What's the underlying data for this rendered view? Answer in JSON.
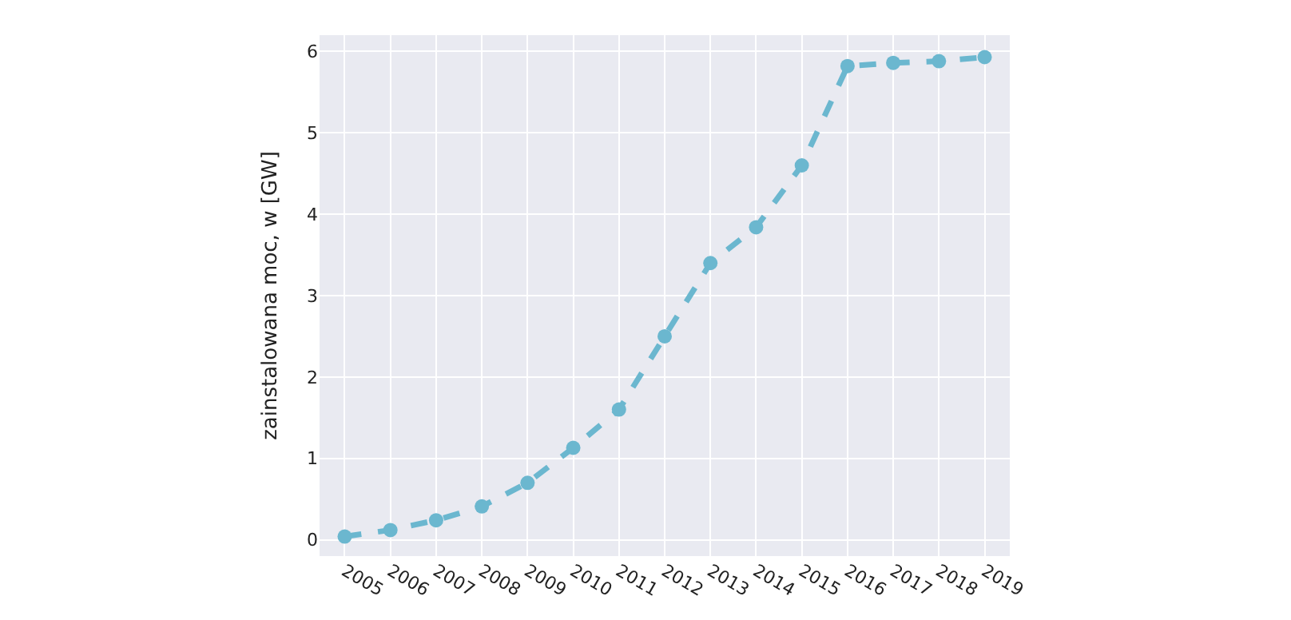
{
  "chart_data": {
    "type": "line",
    "ylabel": "zainstalowana moc, w [GW]",
    "categories": [
      "2005",
      "2006",
      "2007",
      "2008",
      "2009",
      "2010",
      "2011",
      "2012",
      "2013",
      "2014",
      "2015",
      "2016",
      "2017",
      "2018",
      "2019"
    ],
    "series": [
      {
        "color": "#6bb7cf",
        "values": [
          0.04,
          0.12,
          0.24,
          0.41,
          0.7,
          1.13,
          1.6,
          2.5,
          3.4,
          3.84,
          4.6,
          5.82,
          5.86,
          5.88,
          5.93
        ]
      }
    ],
    "ylim": [
      -0.2,
      6.2
    ],
    "yticks": [
      0,
      1,
      2,
      3,
      4,
      5,
      6
    ],
    "grid": true,
    "marker": "circle",
    "line_style": "dashed",
    "legend": false
  }
}
